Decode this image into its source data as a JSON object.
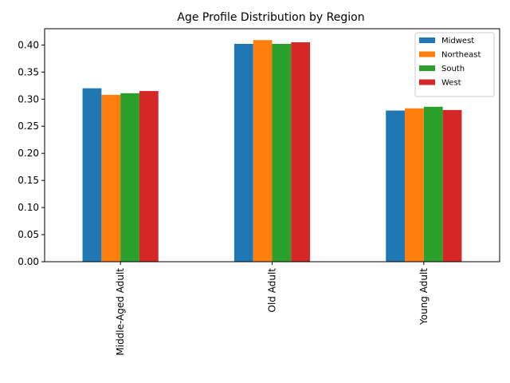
{
  "chart_data": {
    "type": "bar",
    "title": "Age Profile Distribution by Region",
    "xlabel": "",
    "ylabel": "",
    "categories": [
      "Middle-Aged Adult",
      "Old Adult",
      "Young Adult"
    ],
    "series": [
      {
        "name": "Midwest",
        "color": "#1f77b4",
        "values": [
          0.32,
          0.402,
          0.279
        ]
      },
      {
        "name": "Northeast",
        "color": "#ff7f0e",
        "values": [
          0.308,
          0.409,
          0.283
        ]
      },
      {
        "name": "South",
        "color": "#2ca02c",
        "values": [
          0.311,
          0.402,
          0.286
        ]
      },
      {
        "name": "West",
        "color": "#d62728",
        "values": [
          0.315,
          0.405,
          0.28
        ]
      }
    ],
    "ylim": [
      0,
      0.43
    ],
    "yticks": [
      "0.00",
      "0.05",
      "0.10",
      "0.15",
      "0.20",
      "0.25",
      "0.30",
      "0.35",
      "0.40"
    ],
    "grid": false,
    "legend_position": "top-right"
  }
}
